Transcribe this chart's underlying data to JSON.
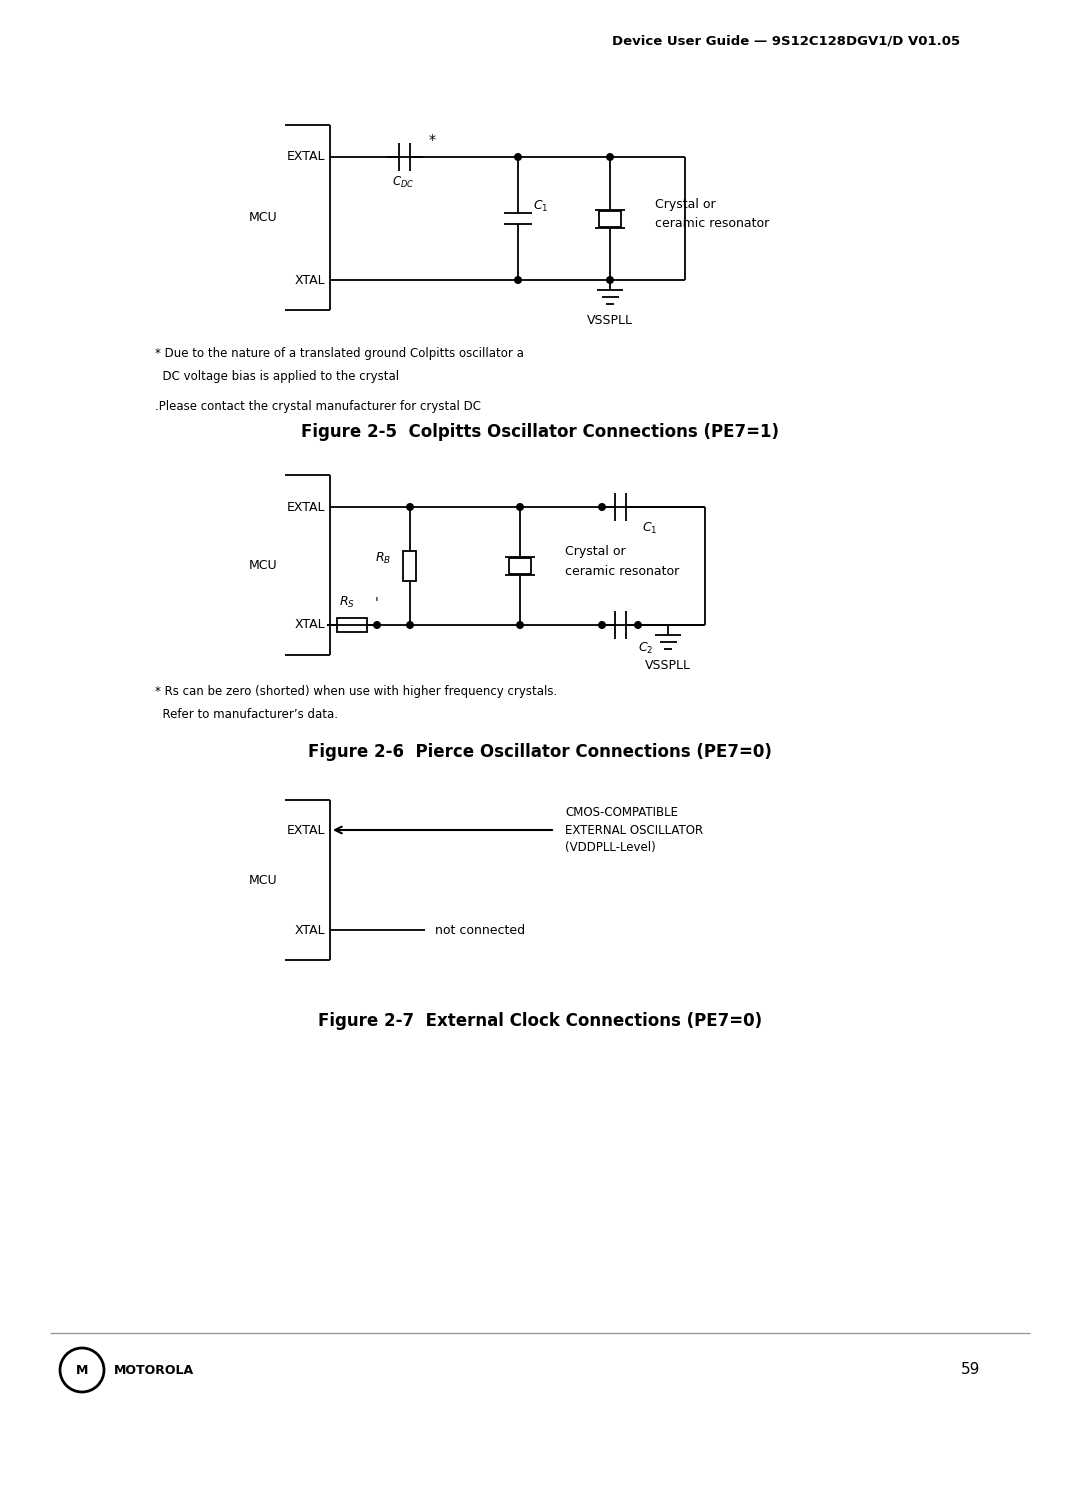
{
  "bg_color": "#ffffff",
  "header_text": "Device User Guide — 9S12C128DGV1/D V01.05",
  "fig1_caption": "Figure 2-5  Colpitts Oscillator Connections (PE7=1)",
  "fig2_caption": "Figure 2-6  Pierce Oscillator Connections (PE7=0)",
  "fig3_caption": "Figure 2-7  External Clock Connections (PE7=0)",
  "note1_line1": "* Due to the nature of a translated ground Colpitts oscillator a",
  "note1_line2": "  DC voltage bias is applied to the crystal",
  "note1_line3": ".Please contact the crystal manufacturer for crystal DC",
  "note2_line1": "* Rs can be zero (shorted) when use with higher frequency crystals.",
  "note2_line2": "  Refer to manufacturer’s data.",
  "footer_text": "MOTOROLA",
  "page_num": "59"
}
